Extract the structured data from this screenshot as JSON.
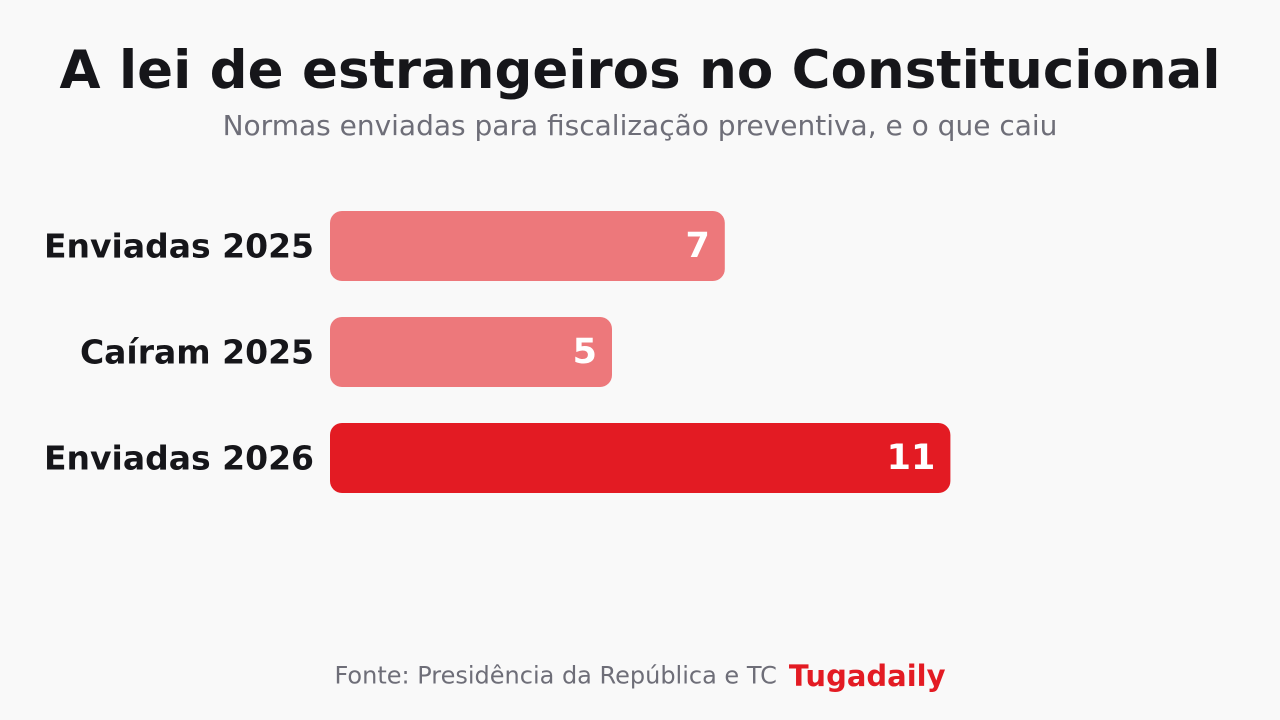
{
  "chart_data": {
    "type": "bar",
    "orientation": "horizontal",
    "title": "A lei de estrangeiros no Constitucional",
    "subtitle": "Normas enviadas para fiscalização preventiva, e o que caiu",
    "categories": [
      "Enviadas 2025",
      "Caíram 2025",
      "Enviadas 2026"
    ],
    "values": [
      7,
      5,
      11
    ],
    "bar_colors": [
      "#ed787b",
      "#ed787b",
      "#e31b23"
    ],
    "value_label_color": "#ffffff",
    "grid": false,
    "legend": false
  },
  "footer": {
    "source": "Fonte: Presidência da República e TC",
    "brand": "Tugadaily",
    "brand_color": "#e31b23"
  }
}
